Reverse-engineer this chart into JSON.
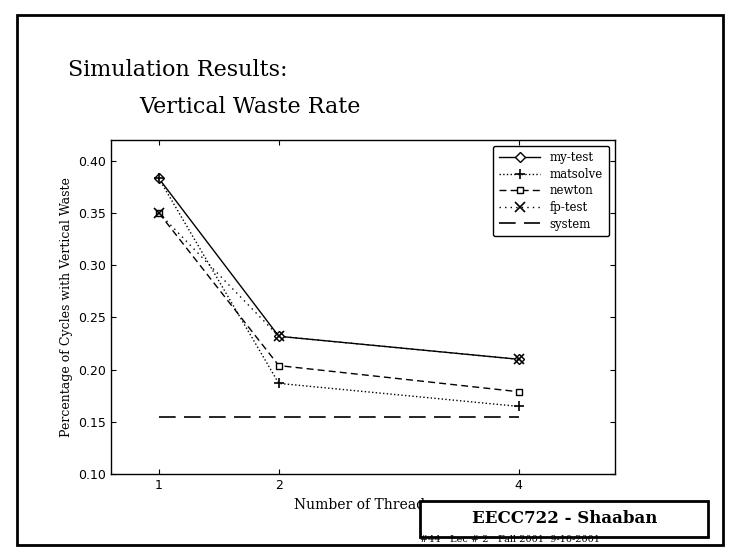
{
  "title_line1": "Simulation Results:",
  "title_line2": "            Vertical Waste Rate",
  "xlabel": "Number of Threads",
  "ylabel": "Percentage of Cycles with Vertical Waste",
  "x": [
    1,
    2,
    4
  ],
  "my_test": [
    0.383,
    0.232,
    0.21
  ],
  "matsolve": [
    0.383,
    0.187,
    0.165
  ],
  "newton": [
    0.35,
    0.204,
    0.179
  ],
  "fp_test": [
    0.35,
    0.232,
    0.21
  ],
  "system": [
    0.155,
    0.155,
    0.155
  ],
  "ylim": [
    0.1,
    0.42
  ],
  "yticks": [
    0.1,
    0.15,
    0.2,
    0.25,
    0.3,
    0.35,
    0.4
  ],
  "xticks": [
    1,
    2,
    4
  ],
  "footer_main": "EECC722 - Shaaban",
  "footer_sub": "#44   Lec # 2   Fall 2001  9-10-2001",
  "bg_color": "#ffffff"
}
